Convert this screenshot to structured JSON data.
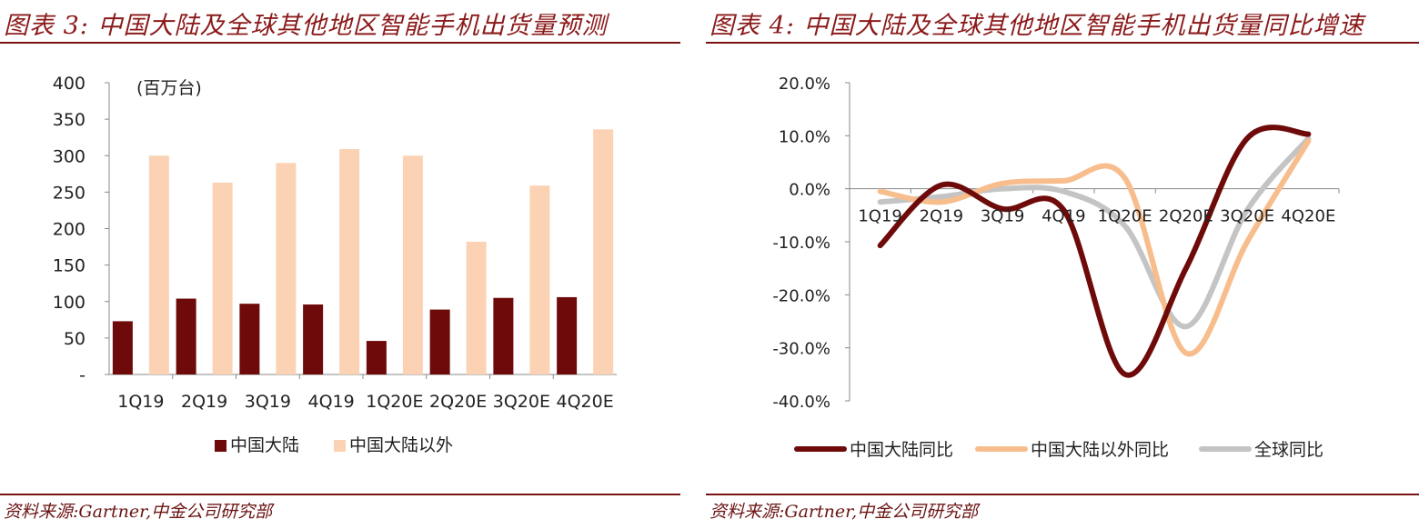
{
  "left_panel": {
    "title": "图表 3:  中国大陆及全球其他地区智能手机出货量预测",
    "source": "资料来源:Gartner,中金公司研究部",
    "unit_label": "(百万台)"
  },
  "right_panel": {
    "title": "图表 4:  中国大陆及全球其他地区智能手机出货量同比增速",
    "source": "资料来源:Gartner,中金公司研究部"
  },
  "colors": {
    "china": "#6e0a0a",
    "outside": "#fbd3b4",
    "outside_line": "#f8bd8c",
    "global": "#c4c4c4",
    "title": "#8b1a1a"
  },
  "chart_data": [
    {
      "type": "bar",
      "categories": [
        "1Q19",
        "2Q19",
        "3Q19",
        "4Q19",
        "1Q20E",
        "2Q20E",
        "3Q20E",
        "4Q20E"
      ],
      "series": [
        {
          "name": "中国大陆",
          "values": [
            73,
            104,
            97,
            96,
            46,
            89,
            105,
            106
          ]
        },
        {
          "name": "中国大陆以外",
          "values": [
            300,
            263,
            290,
            309,
            300,
            182,
            259,
            336
          ]
        }
      ],
      "y_ticks": [
        "-",
        "50",
        "100",
        "150",
        "200",
        "250",
        "300",
        "350",
        "400"
      ],
      "ylim": [
        0,
        400
      ],
      "legend_position": "bottom"
    },
    {
      "type": "line",
      "categories": [
        "1Q19",
        "2Q19",
        "3Q19",
        "4Q19",
        "1Q20E",
        "2Q20E",
        "3Q20E",
        "4Q20E"
      ],
      "series": [
        {
          "name": "中国大陆同比",
          "values": [
            -10.7,
            0.7,
            -3.8,
            -4.0,
            -35.0,
            -15.0,
            9.5,
            10.3
          ]
        },
        {
          "name": "中国大陆以外同比",
          "values": [
            -0.5,
            -2.5,
            1.0,
            1.5,
            2.0,
            -31.0,
            -10.0,
            9.0
          ]
        },
        {
          "name": "全球同比",
          "values": [
            -2.5,
            -1.5,
            0.0,
            -0.5,
            -7.0,
            -26.0,
            -4.0,
            9.5
          ]
        }
      ],
      "y_ticks": [
        "-40.0%",
        "-30.0%",
        "-20.0%",
        "-10.0%",
        "0.0%",
        "10.0%",
        "20.0%"
      ],
      "ylim": [
        -40,
        20
      ],
      "legend_position": "bottom"
    }
  ]
}
